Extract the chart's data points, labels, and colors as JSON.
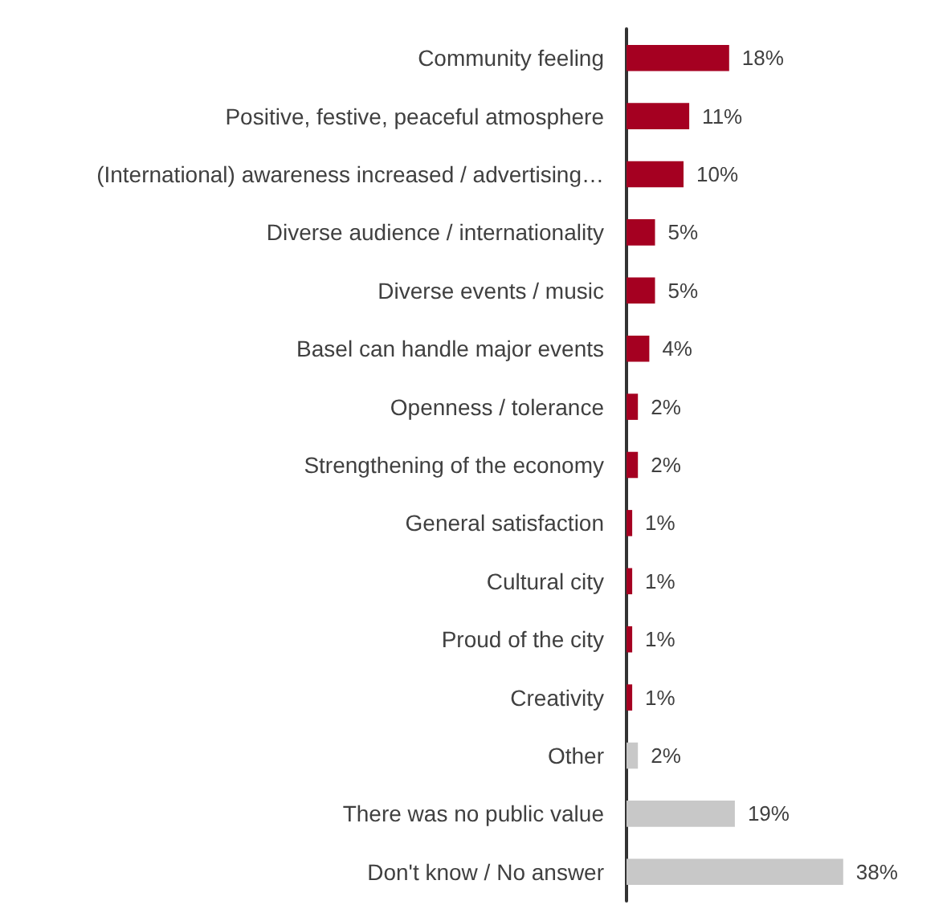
{
  "chart_data": {
    "type": "bar",
    "orientation": "horizontal",
    "tick_labels": "y",
    "categories": [
      "Community feeling",
      "Positive, festive, peaceful atmosphere",
      "(International) awareness increased / advertising…",
      "Diverse audience / internationality",
      "Diverse events / music",
      "Basel can handle major events",
      "Openness / tolerance",
      "Strengthening of the economy",
      "General satisfaction",
      "Cultural city",
      "Proud of the city",
      "Creativity",
      "Other",
      "There was no public value",
      "Don't know / No answer"
    ],
    "values": [
      18,
      11,
      10,
      5,
      5,
      4,
      2,
      2,
      1,
      1,
      1,
      1,
      2,
      19,
      38
    ],
    "value_labels": [
      "18%",
      "11%",
      "10%",
      "5%",
      "5%",
      "4%",
      "2%",
      "2%",
      "1%",
      "1%",
      "1%",
      "1%",
      "2%",
      "19%",
      "38%"
    ],
    "colors": [
      "#a50021",
      "#a50021",
      "#a50021",
      "#a50021",
      "#a50021",
      "#a50021",
      "#a50021",
      "#a50021",
      "#a50021",
      "#a50021",
      "#a50021",
      "#a50021",
      "#c8c8c8",
      "#c8c8c8",
      "#c8c8c8"
    ]
  }
}
